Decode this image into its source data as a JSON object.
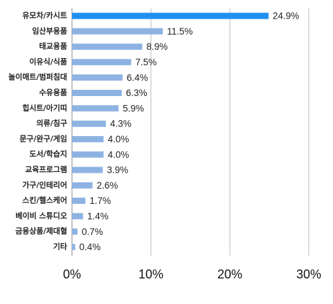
{
  "chart_data": {
    "type": "hbar",
    "categories": [
      "유모차/카시트",
      "임산부용품",
      "태교용품",
      "이유식/식품",
      "놀이매트/범퍼침대",
      "수유용품",
      "힙시트/아기띠",
      "의류/침구",
      "문구/완구/게임",
      "도서/학습지",
      "교육프로그램",
      "가구/인테리어",
      "스킨/헬스케어",
      "베이비 스튜디오",
      "금융상품/제대혈",
      "기타"
    ],
    "values": [
      24.9,
      11.5,
      8.9,
      7.5,
      6.4,
      6.3,
      5.9,
      4.3,
      4.0,
      4.0,
      3.9,
      2.6,
      1.7,
      1.4,
      0.7,
      0.4
    ],
    "value_labels": [
      "24.9%",
      "11.5%",
      "8.9%",
      "7.5%",
      "6.4%",
      "6.3%",
      "5.9%",
      "4.3%",
      "4.0%",
      "4.0%",
      "3.9%",
      "2.6%",
      "1.7%",
      "1.4%",
      "0.7%",
      "0.4%"
    ],
    "colors": [
      "#1f8ff0",
      "#8db3e2",
      "#8db3e2",
      "#8db3e2",
      "#8db3e2",
      "#8db3e2",
      "#8db3e2",
      "#8db3e2",
      "#8db3e2",
      "#8db3e2",
      "#8db3e2",
      "#8db3e2",
      "#8db3e2",
      "#8db3e2",
      "#8db3e2",
      "#8db3e2"
    ],
    "xlim": [
      0,
      30
    ],
    "xticks": [
      {
        "value": 0,
        "label": "0%"
      },
      {
        "value": 10,
        "label": "10%"
      },
      {
        "value": 20,
        "label": "20%"
      },
      {
        "value": 30,
        "label": "30%"
      }
    ],
    "grid": true
  }
}
